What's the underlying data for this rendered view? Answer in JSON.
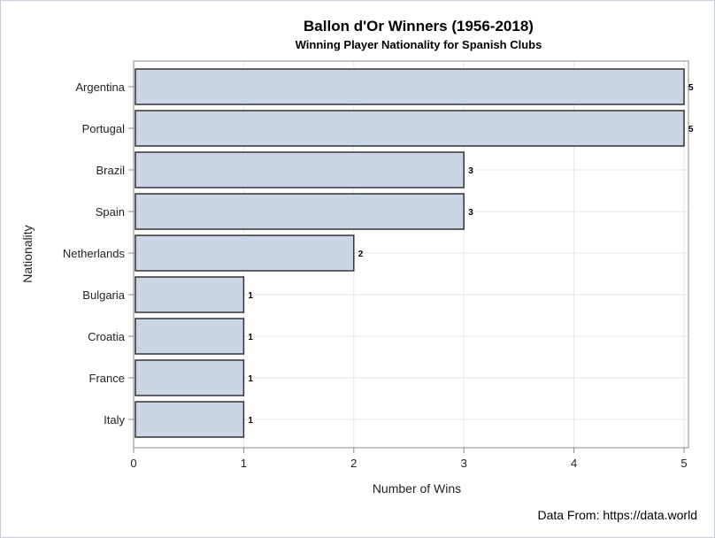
{
  "chart_data": {
    "type": "bar",
    "orientation": "horizontal",
    "title": "Ballon d'Or Winners (1956-2018)",
    "subtitle": "Winning Player Nationality for Spanish Clubs",
    "xlabel": "Number of Wins",
    "ylabel": "Nationality",
    "categories": [
      "Argentina",
      "Portugal",
      "Brazil",
      "Spain",
      "Netherlands",
      "Bulgaria",
      "Croatia",
      "France",
      "Italy"
    ],
    "values": [
      5,
      5,
      3,
      3,
      2,
      1,
      1,
      1,
      1
    ],
    "data_labels": [
      "5",
      "5",
      "3",
      "3",
      "2",
      "1",
      "1",
      "1",
      "1"
    ],
    "xlim": [
      0,
      5
    ],
    "xticks": [
      "0",
      "1",
      "2",
      "3",
      "4",
      "5"
    ],
    "grid": true,
    "colors": {
      "bar_fill": "#cad5e5",
      "bar_stroke": "#333333",
      "grid": "#e6e6e6",
      "axis": "#888888"
    },
    "footnote": "Data From: https://data.world"
  }
}
